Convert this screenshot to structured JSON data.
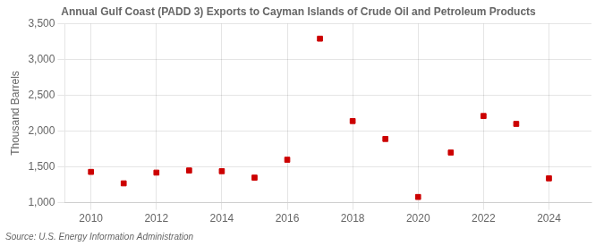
{
  "chart_data": {
    "type": "scatter",
    "title": "Annual Gulf Coast (PADD 3) Exports to Cayman Islands of Crude Oil and Petroleum Products",
    "ylabel": "Thousand Barrels",
    "annotations": [
      "Source: U.S. Energy Information Administration"
    ],
    "x": [
      2010,
      2011,
      2012,
      2013,
      2014,
      2015,
      2016,
      2017,
      2018,
      2019,
      2020,
      2021,
      2022,
      2023,
      2024
    ],
    "values": [
      1430,
      1270,
      1420,
      1450,
      1440,
      1350,
      1600,
      3290,
      2140,
      1890,
      1080,
      1700,
      2210,
      2100,
      1340
    ],
    "color": "#cc0000",
    "marker": "square",
    "xlim": [
      2009.2,
      2025.3
    ],
    "xticks": [
      2010,
      2012,
      2014,
      2016,
      2018,
      2020,
      2022,
      2024
    ],
    "ylim": [
      1000,
      3500
    ],
    "yticks": [
      {
        "value": 1000,
        "label": "1,000"
      },
      {
        "value": 1500,
        "label": "1,500"
      },
      {
        "value": 2000,
        "label": "2,000"
      },
      {
        "value": 2500,
        "label": "2,500"
      },
      {
        "value": 3000,
        "label": "3,000"
      },
      {
        "value": 3500,
        "label": "3,500"
      }
    ],
    "grid": true
  }
}
